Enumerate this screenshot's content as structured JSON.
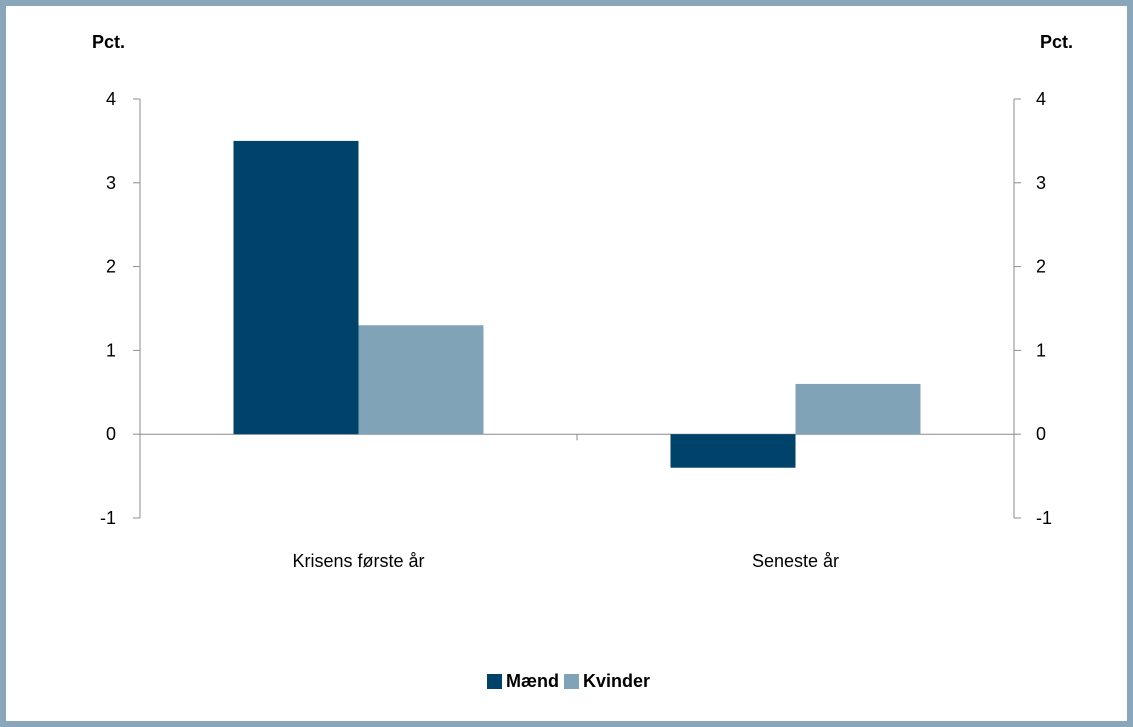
{
  "chart_data": {
    "type": "bar",
    "categories": [
      "Krisens første år",
      "Seneste år"
    ],
    "series": [
      {
        "name": "Mænd",
        "values": [
          3.5,
          -0.4
        ],
        "color": "#00436a"
      },
      {
        "name": "Kvinder",
        "values": [
          1.3,
          0.6
        ],
        "color": "#80a3b8"
      }
    ],
    "ylim": [
      -1,
      4
    ],
    "yticks": [
      -1,
      0,
      1,
      2,
      3,
      4
    ],
    "ylabel_left": "Pct.",
    "ylabel_right": "Pct.",
    "grid": false,
    "legend_position": "bottom",
    "dual_axis": true
  }
}
